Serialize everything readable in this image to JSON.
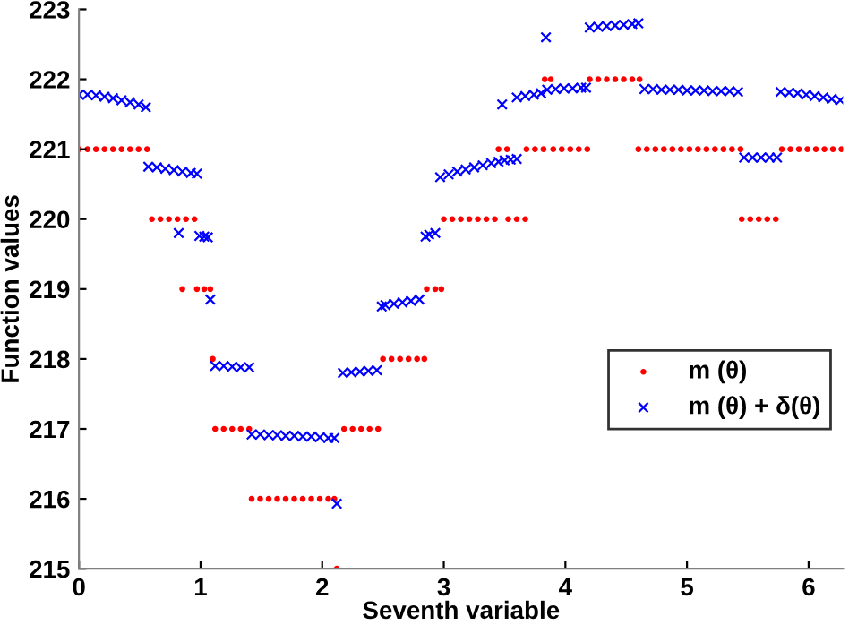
{
  "chart_data": {
    "type": "scatter",
    "xlabel": "Seventh variable",
    "ylabel": "Function values",
    "xlim": [
      0,
      6.2832
    ],
    "ylim": [
      215,
      223
    ],
    "xticks": [
      0,
      1,
      2,
      3,
      4,
      5,
      6
    ],
    "yticks": [
      215,
      216,
      217,
      218,
      219,
      220,
      221,
      222,
      223
    ],
    "grid": false,
    "legend": "right",
    "series": [
      {
        "name": "m (θ)",
        "color": "#ff0000",
        "marker": "circle",
        "x": [
          0,
          0.07,
          0.14,
          0.21,
          0.28,
          0.35,
          0.42,
          0.49,
          0.56,
          0.6,
          0.67,
          0.74,
          0.81,
          0.88,
          0.95,
          0.85,
          0.97,
          1.03,
          1.08,
          1.1,
          1.12,
          1.19,
          1.26,
          1.33,
          1.4,
          1.42,
          1.49,
          1.56,
          1.63,
          1.7,
          1.77,
          1.84,
          1.91,
          1.98,
          2.05,
          2.1,
          2.12,
          2.18,
          2.25,
          2.32,
          2.39,
          2.46,
          2.5,
          2.57,
          2.64,
          2.71,
          2.78,
          2.84,
          2.86,
          2.93,
          2.98,
          3.0,
          3.07,
          3.14,
          3.21,
          3.28,
          3.35,
          3.42,
          3.53,
          3.6,
          3.67,
          3.45,
          3.52,
          3.68,
          3.75,
          3.82,
          3.9,
          3.97,
          4.04,
          4.11,
          4.18,
          4.6,
          4.67,
          4.74,
          4.81,
          4.88,
          4.95,
          5.02,
          5.09,
          5.16,
          5.23,
          5.3,
          5.37,
          5.44,
          5.78,
          5.85,
          5.92,
          5.99,
          6.06,
          6.13,
          6.2,
          6.27,
          3.83,
          3.88,
          4.2,
          4.27,
          4.34,
          4.41,
          4.48,
          4.55,
          4.61,
          5.45,
          5.52,
          5.59,
          5.66,
          5.73
        ],
        "values": [
          221,
          221,
          221,
          221,
          221,
          221,
          221,
          221,
          221,
          220,
          220,
          220,
          220,
          220,
          220,
          219,
          219,
          219,
          219,
          218,
          217,
          217,
          217,
          217,
          217,
          216,
          216,
          216,
          216,
          216,
          216,
          216,
          216,
          216,
          216,
          216,
          215,
          217,
          217,
          217,
          217,
          217,
          218,
          218,
          218,
          218,
          218,
          218,
          219,
          219,
          219,
          220,
          220,
          220,
          220,
          220,
          220,
          220,
          220,
          220,
          220,
          221,
          221,
          221,
          221,
          221,
          221,
          221,
          221,
          221,
          221,
          221,
          221,
          221,
          221,
          221,
          221,
          221,
          221,
          221,
          221,
          221,
          221,
          221,
          221,
          221,
          221,
          221,
          221,
          221,
          221,
          221,
          222,
          222,
          222,
          222,
          222,
          222,
          222,
          222,
          222,
          220,
          220,
          220,
          220,
          220
        ]
      },
      {
        "name": "m (θ) + δ(θ)",
        "color": "#0000ff",
        "marker": "cross",
        "x": [
          0,
          0.07,
          0.14,
          0.21,
          0.28,
          0.35,
          0.42,
          0.49,
          0.55,
          0.57,
          0.64,
          0.71,
          0.78,
          0.85,
          0.92,
          0.97,
          0.82,
          0.99,
          1.03,
          1.06,
          1.08,
          1.12,
          1.19,
          1.26,
          1.33,
          1.4,
          1.42,
          1.49,
          1.56,
          1.63,
          1.7,
          1.77,
          1.84,
          1.91,
          1.98,
          2.05,
          2.1,
          2.12,
          2.17,
          2.24,
          2.31,
          2.38,
          2.45,
          2.49,
          2.52,
          2.59,
          2.66,
          2.73,
          2.8,
          2.85,
          2.88,
          2.93,
          2.97,
          3.04,
          3.11,
          3.18,
          3.25,
          3.32,
          3.39,
          3.45,
          3.5,
          3.55,
          3.6,
          3.48,
          3.6,
          3.67,
          3.74,
          3.8,
          3.84,
          3.85,
          3.92,
          3.99,
          4.06,
          4.13,
          4.17,
          4.2,
          4.27,
          4.34,
          4.41,
          4.48,
          4.55,
          4.6,
          4.65,
          4.72,
          4.79,
          4.86,
          4.93,
          5.0,
          5.07,
          5.14,
          5.21,
          5.28,
          5.35,
          5.42,
          5.47,
          5.54,
          5.61,
          5.68,
          5.74,
          5.77,
          5.84,
          5.91,
          5.98,
          6.05,
          6.12,
          6.19,
          6.26
        ],
        "values": [
          221.78,
          221.78,
          221.77,
          221.75,
          221.73,
          221.7,
          221.67,
          221.64,
          221.6,
          220.75,
          220.74,
          220.72,
          220.7,
          220.68,
          220.66,
          220.65,
          219.8,
          219.76,
          219.75,
          219.74,
          218.85,
          217.9,
          217.9,
          217.89,
          217.88,
          217.88,
          216.92,
          216.92,
          216.91,
          216.91,
          216.9,
          216.9,
          216.89,
          216.89,
          216.88,
          216.87,
          216.87,
          215.93,
          217.8,
          217.81,
          217.82,
          217.83,
          217.84,
          218.75,
          218.77,
          218.79,
          218.81,
          218.83,
          218.85,
          219.75,
          219.78,
          219.8,
          220.6,
          220.64,
          220.68,
          220.71,
          220.74,
          220.77,
          220.8,
          220.82,
          220.84,
          220.85,
          220.86,
          221.64,
          221.74,
          221.76,
          221.78,
          221.8,
          222.6,
          221.85,
          221.86,
          221.87,
          221.87,
          221.88,
          221.88,
          222.74,
          222.75,
          222.76,
          222.77,
          222.78,
          222.79,
          222.8,
          221.86,
          221.86,
          221.85,
          221.85,
          221.85,
          221.84,
          221.84,
          221.84,
          221.83,
          221.83,
          221.83,
          221.82,
          220.88,
          220.88,
          220.88,
          220.88,
          220.88,
          221.82,
          221.81,
          221.8,
          221.78,
          221.76,
          221.74,
          221.72,
          221.7
        ]
      }
    ]
  }
}
